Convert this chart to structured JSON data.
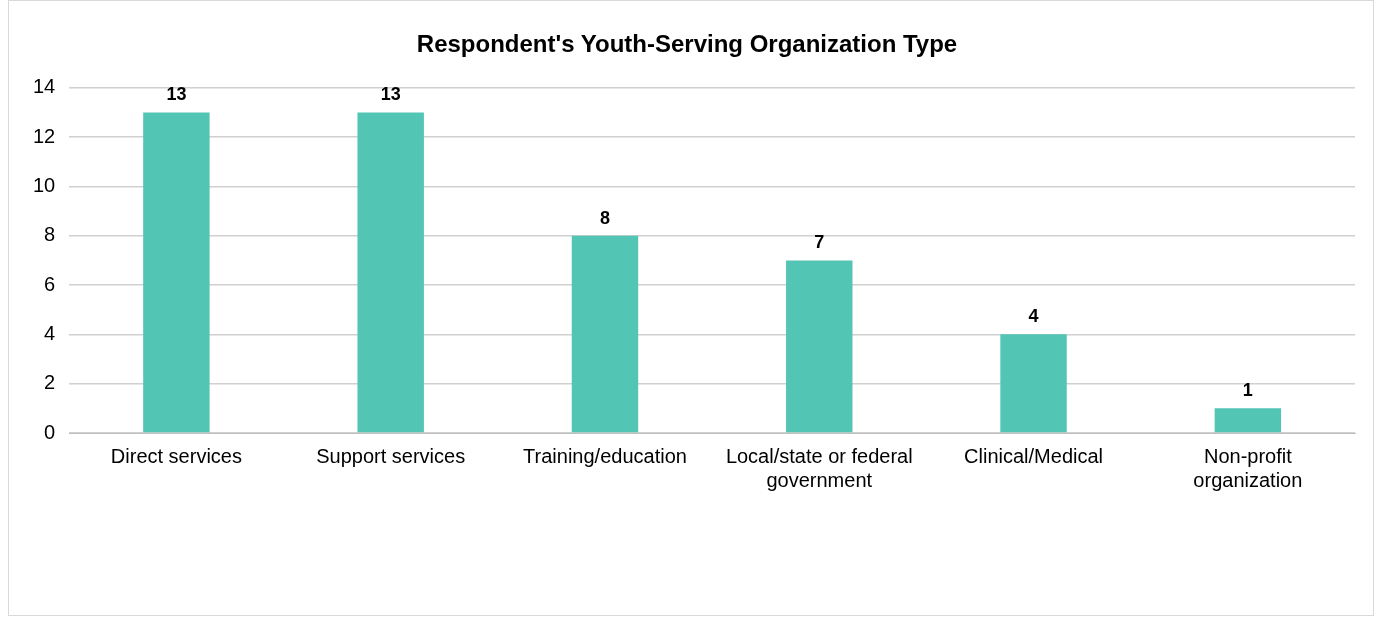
{
  "chart_data": {
    "type": "bar",
    "title": "Respondent's Youth-Serving Organization Type",
    "categories": [
      "Direct services",
      "Support services",
      "Training/education",
      "Local/state or federal government",
      "Clinical/Medical",
      "Non-profit organization"
    ],
    "values": [
      13,
      13,
      8,
      7,
      4,
      1
    ],
    "color": "#52c5b4",
    "ylim": [
      0,
      14
    ],
    "yticks": [
      0,
      2,
      4,
      6,
      8,
      10,
      12,
      14
    ],
    "grid": "y",
    "data_labels": true
  }
}
